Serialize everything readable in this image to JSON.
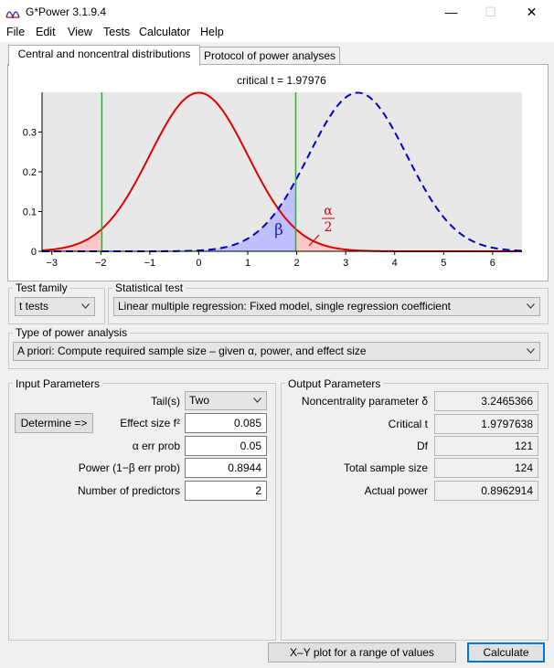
{
  "window": {
    "title": "G*Power 3.1.9.4",
    "minimize_glyph": "—",
    "maximize_glyph": "☐",
    "close_glyph": "✕",
    "icon": "gpower-logo-icon"
  },
  "menu": [
    {
      "label": "File"
    },
    {
      "label": "Edit"
    },
    {
      "label": "View"
    },
    {
      "label": "Tests"
    },
    {
      "label": "Calculator"
    },
    {
      "label": "Help"
    }
  ],
  "tabs": [
    {
      "label": "Central and noncentral distributions",
      "active": true
    },
    {
      "label": "Protocol of power analyses",
      "active": false
    }
  ],
  "chart_data": {
    "type": "line",
    "title": "critical t = 1.97976",
    "xlim": [
      -3.2,
      6.6
    ],
    "ylim": [
      0,
      0.4
    ],
    "x_ticks": [
      -3,
      -2,
      -1,
      0,
      1,
      2,
      3,
      4,
      5,
      6
    ],
    "y_ticks": [
      {
        "value": 0,
        "label": "0"
      },
      {
        "value": 0.1,
        "label": "0.1"
      },
      {
        "value": 0.2,
        "label": "0.2"
      },
      {
        "value": 0.3,
        "label": "0.3"
      }
    ],
    "series": [
      {
        "kind": "central-t",
        "df": 121,
        "noncentrality": 0,
        "color": "#e00000",
        "style": "solid",
        "fill": "#ffc8c8"
      },
      {
        "kind": "noncentral-t",
        "df": 121,
        "noncentrality": 3.2465366,
        "color": "#0000c8",
        "style": "dashed",
        "fill": "#c0c0ff"
      }
    ],
    "critical_lines": [
      -1.97976,
      1.97976
    ],
    "critical_line_color": "#00d000",
    "labels": {
      "beta": "β",
      "alpha_num": "α",
      "alpha_den": "2"
    },
    "colors": {
      "beta_label": "#2020c0",
      "alpha_label": "#d00000",
      "plot_bg": "#e8e8e8"
    }
  },
  "test_family": {
    "label": "Test family",
    "value": "t tests"
  },
  "statistical_test": {
    "label": "Statistical test",
    "value": "Linear multiple regression: Fixed model, single regression coefficient"
  },
  "power_analysis": {
    "label": "Type of power analysis",
    "value": "A priori: Compute required sample size – given α, power, and effect size"
  },
  "input": {
    "title": "Input Parameters",
    "determine_button": "Determine =>",
    "tails": {
      "label": "Tail(s)",
      "value": "Two"
    },
    "effect_size": {
      "label": "Effect size f²",
      "value": "0.085"
    },
    "alpha": {
      "label": "α err prob",
      "value": "0.05"
    },
    "power": {
      "label": "Power (1−β err prob)",
      "value": "0.8944"
    },
    "predictors": {
      "label": "Number of predictors",
      "value": "2"
    }
  },
  "output": {
    "title": "Output Parameters",
    "rows": [
      {
        "label": "Noncentrality parameter δ",
        "value": "3.2465366"
      },
      {
        "label": "Critical t",
        "value": "1.9797638"
      },
      {
        "label": "Df",
        "value": "121"
      },
      {
        "label": "Total sample size",
        "value": "124"
      },
      {
        "label": "Actual power",
        "value": "0.8962914"
      }
    ]
  },
  "buttons": {
    "xy_plot": "X–Y plot for a range of values",
    "calculate": "Calculate"
  }
}
